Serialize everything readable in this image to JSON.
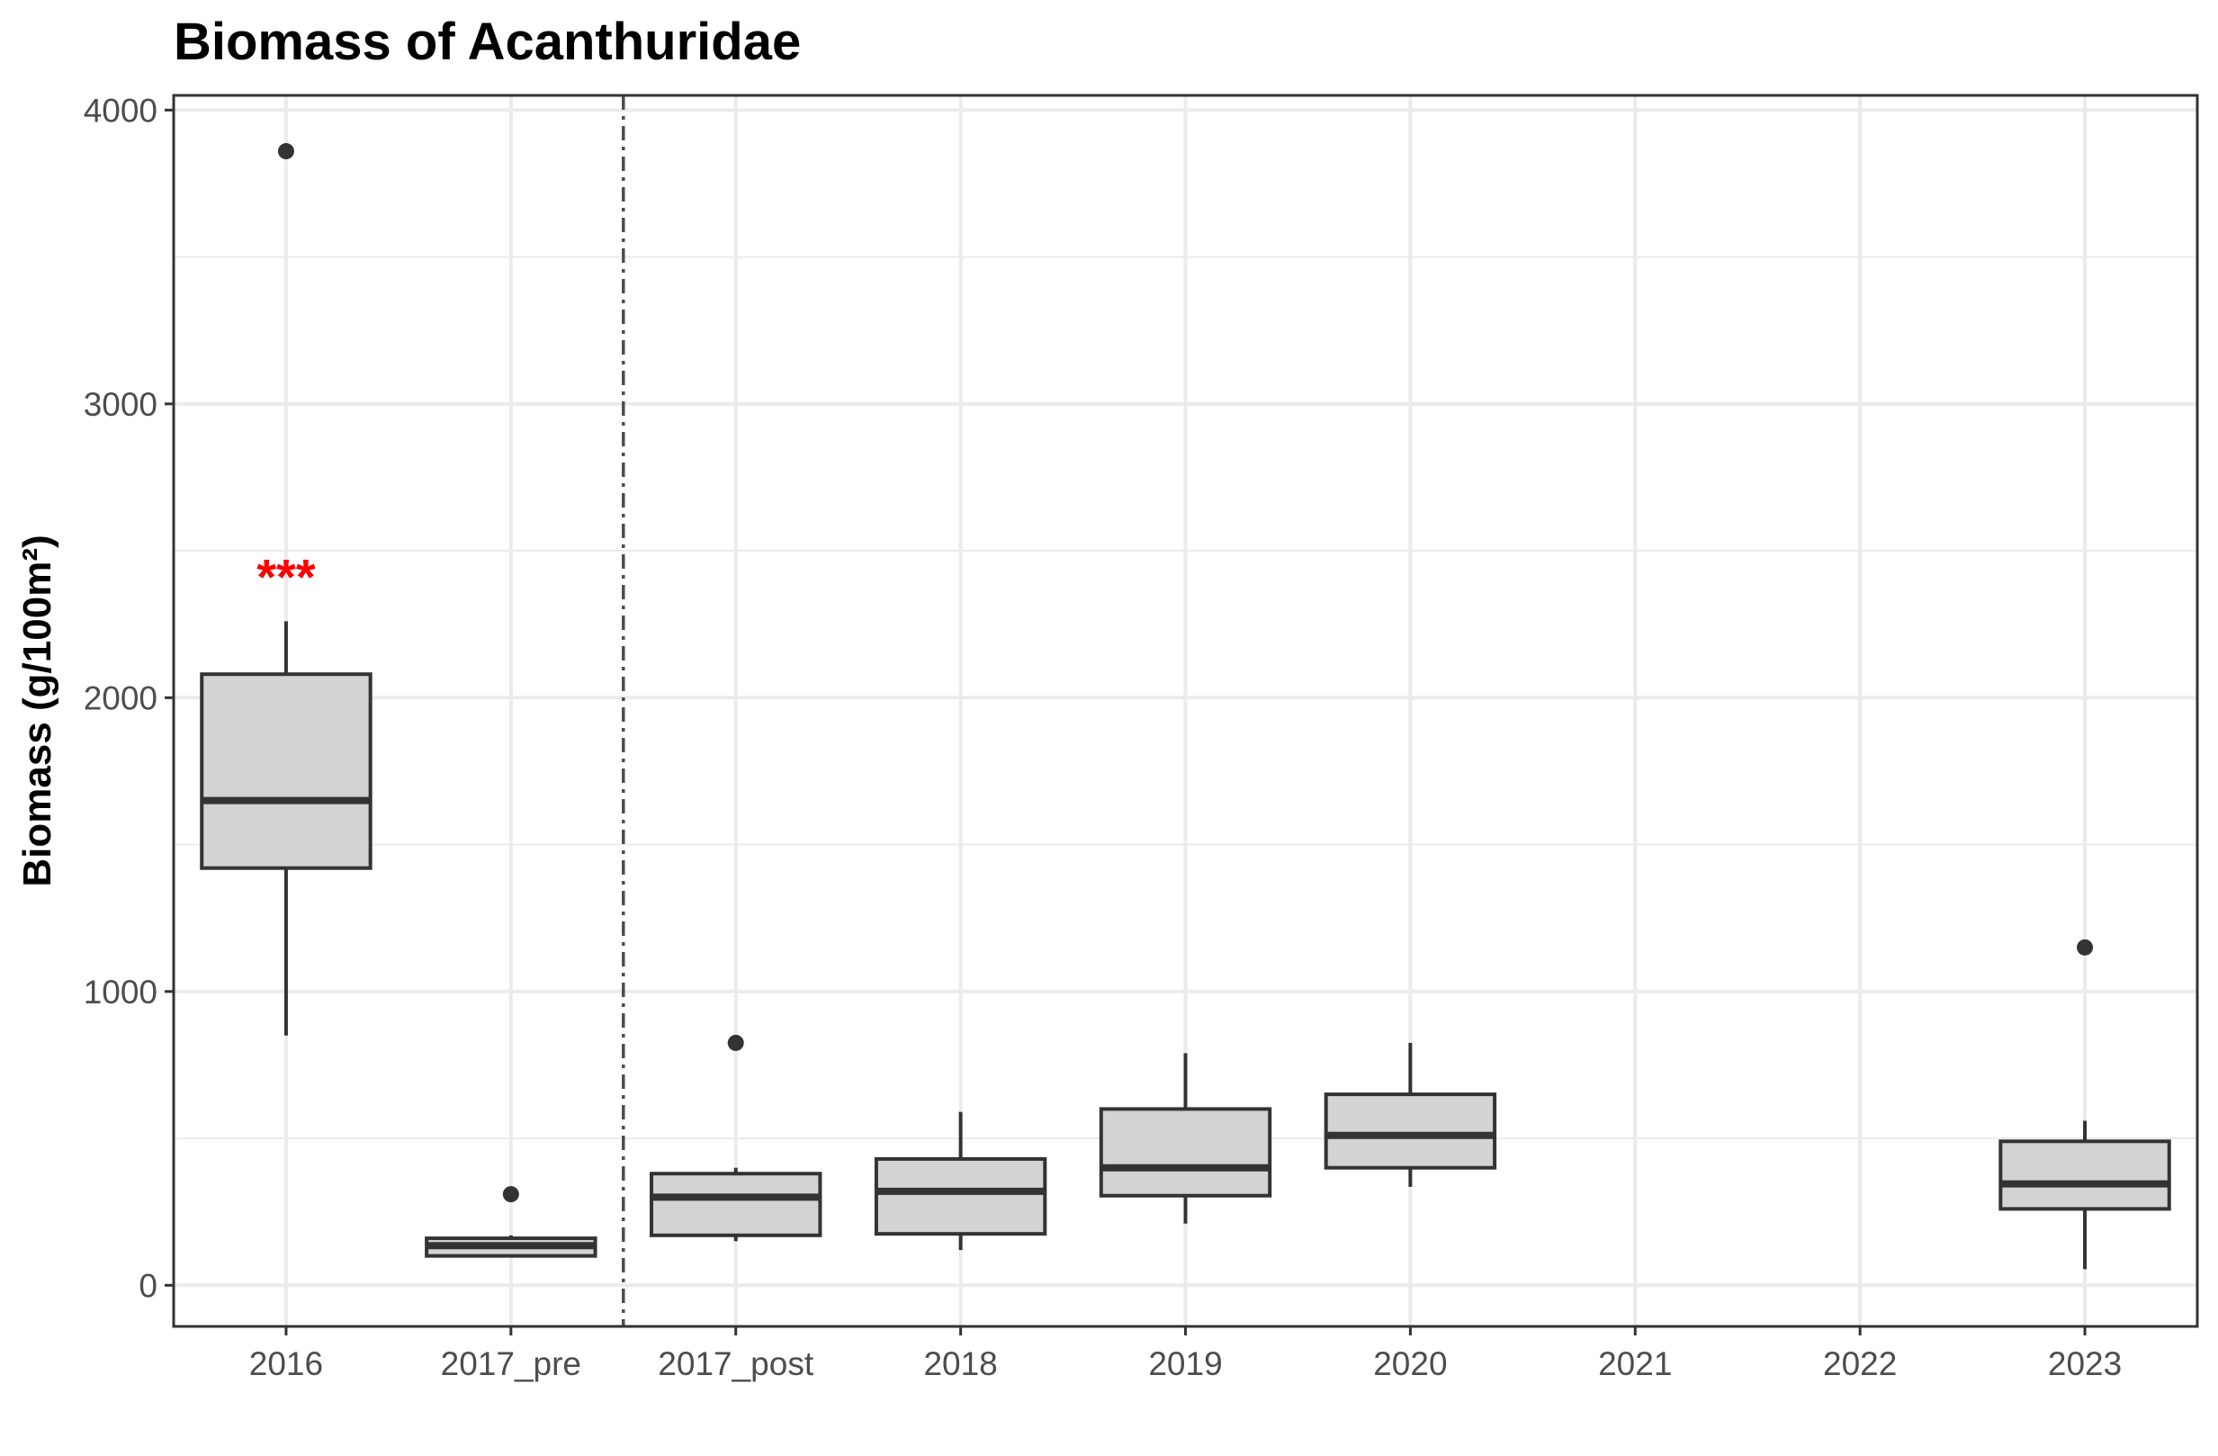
{
  "chart_data": {
    "type": "box",
    "title": "Biomass of Acanthuridae",
    "xlabel": "",
    "ylabel": "Biomass (g/100m²)",
    "ylim": [
      -140,
      4050
    ],
    "yticks": [
      0,
      1000,
      2000,
      3000,
      4000
    ],
    "grid": true,
    "categories": [
      "2016",
      "2017_pre",
      "2017_post",
      "2018",
      "2019",
      "2020",
      "2021",
      "2022",
      "2023"
    ],
    "boxes": [
      {
        "category": "2016",
        "whisker_low": 850,
        "q1": 1420,
        "median": 1650,
        "q3": 2080,
        "whisker_high": 2260,
        "outliers": [
          3860
        ],
        "annotation": "***"
      },
      {
        "category": "2017_pre",
        "whisker_low": 100,
        "q1": 100,
        "median": 135,
        "q3": 160,
        "whisker_high": 170,
        "outliers": [
          310
        ]
      },
      {
        "category": "2017_post",
        "whisker_low": 150,
        "q1": 170,
        "median": 300,
        "q3": 380,
        "whisker_high": 400,
        "outliers": [
          825
        ]
      },
      {
        "category": "2018",
        "whisker_low": 120,
        "q1": 175,
        "median": 320,
        "q3": 430,
        "whisker_high": 590,
        "outliers": []
      },
      {
        "category": "2019",
        "whisker_low": 210,
        "q1": 305,
        "median": 400,
        "q3": 600,
        "whisker_high": 790,
        "outliers": []
      },
      {
        "category": "2020",
        "whisker_low": 335,
        "q1": 400,
        "median": 510,
        "q3": 650,
        "whisker_high": 825,
        "outliers": []
      },
      {
        "category": "2023",
        "whisker_low": 55,
        "q1": 260,
        "median": 345,
        "q3": 490,
        "whisker_high": 560,
        "outliers": [
          1150
        ]
      }
    ],
    "reference_line": {
      "between": [
        "2017_pre",
        "2017_post"
      ],
      "style": "dashed"
    },
    "colors": {
      "box_fill": "#d3d3d3",
      "box_stroke": "#333333",
      "grid": "#ebebeb",
      "annotation": "#ff0000",
      "reference_line": "#4d4d4d"
    }
  }
}
